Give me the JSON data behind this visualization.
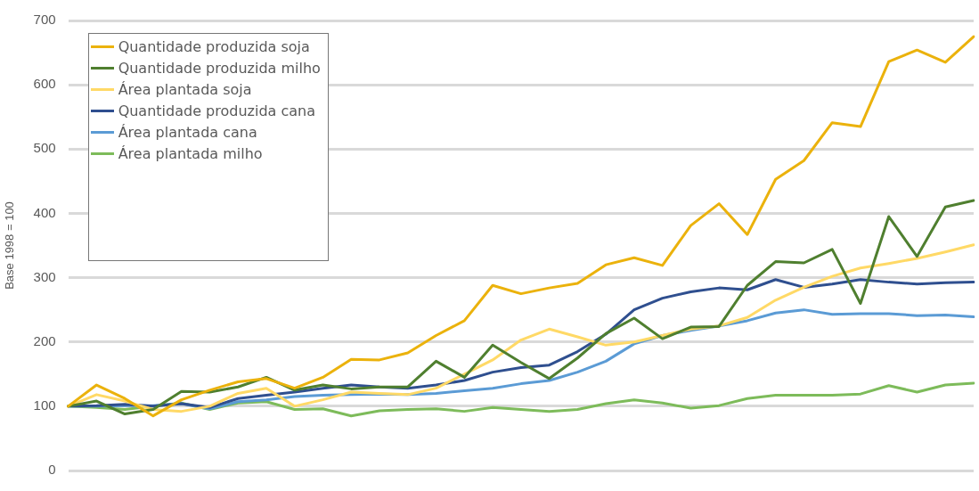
{
  "chart_data": {
    "type": "line",
    "ylabel": "Base 1998 = 100",
    "categories": [
      null,
      null,
      null,
      null,
      null,
      null,
      null,
      null,
      null,
      null,
      null,
      null,
      null,
      null,
      null,
      null,
      null,
      null,
      null,
      null,
      null,
      null,
      null,
      null,
      null,
      null,
      null,
      null,
      null,
      null,
      null,
      null,
      null
    ],
    "series": [
      {
        "name": "Quantidade produzida soja",
        "color": "#ebb20c",
        "values": [
          100,
          133,
          112,
          85,
          110,
          125,
          138,
          143,
          128,
          145,
          173,
          172,
          183,
          210,
          233,
          288,
          275,
          284,
          291,
          320,
          331,
          319,
          381,
          415,
          367,
          453,
          482,
          541,
          535,
          636,
          654,
          635,
          675
        ]
      },
      {
        "name": "Quantidade produzida milho",
        "color": "#4f7f2f",
        "values": [
          100,
          108,
          88,
          95,
          123,
          122,
          130,
          145,
          125,
          133,
          127,
          130,
          130,
          170,
          145,
          195,
          168,
          143,
          175,
          213,
          237,
          205,
          223,
          224,
          288,
          325,
          323,
          344,
          260,
          395,
          333,
          410,
          420
        ]
      },
      {
        "name": "Área plantada soja",
        "color": "#ffd966",
        "values": [
          100,
          118,
          108,
          95,
          92,
          100,
          120,
          128,
          100,
          110,
          122,
          120,
          118,
          128,
          150,
          172,
          203,
          220,
          208,
          195,
          200,
          210,
          220,
          225,
          238,
          265,
          285,
          302,
          315,
          322,
          330,
          340,
          351
        ]
      },
      {
        "name": "Quantidade produzida cana",
        "color": "#2f4f8f",
        "values": [
          100,
          101,
          103,
          100,
          104,
          98,
          112,
          117,
          122,
          128,
          133,
          130,
          128,
          133,
          140,
          153,
          160,
          164,
          185,
          212,
          250,
          268,
          278,
          284,
          281,
          297,
          285,
          290,
          297,
          293,
          290,
          292,
          293
        ]
      },
      {
        "name": "Área plantada cana",
        "color": "#5b9bd5",
        "values": [
          100,
          100,
          101,
          101,
          104,
          96,
          107,
          110,
          115,
          117,
          118,
          119,
          118,
          120,
          124,
          128,
          135,
          140,
          153,
          170,
          197,
          210,
          218,
          225,
          233,
          245,
          250,
          243,
          244,
          244,
          241,
          242,
          239
        ]
      },
      {
        "name": "Área plantada milho",
        "color": "#7dbb5a",
        "values": [
          100,
          98,
          95,
          100,
          105,
          95,
          105,
          107,
          95,
          96,
          85,
          93,
          95,
          96,
          92,
          98,
          95,
          92,
          95,
          104,
          110,
          105,
          97,
          101,
          112,
          117,
          117,
          117,
          119,
          132,
          122,
          133,
          136
        ]
      }
    ],
    "ylim": [
      0,
      700
    ],
    "yticks": [
      0,
      100,
      200,
      300,
      400,
      500,
      600,
      700
    ],
    "grid": "y",
    "legend": "top left",
    "tick_labels": "y",
    "marker": "none",
    "line_style": "solid"
  }
}
